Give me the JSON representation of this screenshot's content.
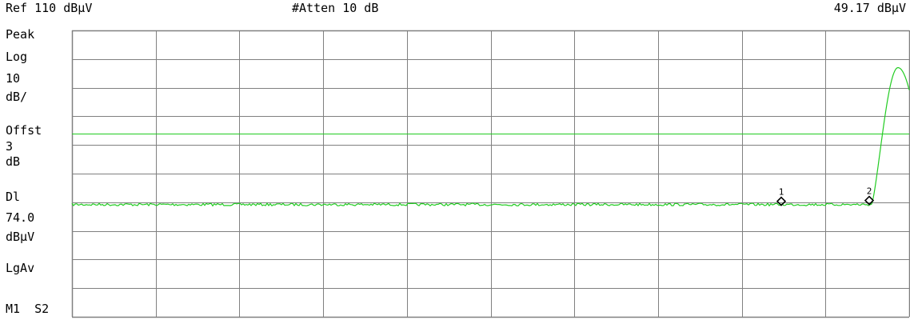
{
  "header": {
    "ref_level": "Ref 110 dBµV",
    "attenuation": "#Atten 10 dB",
    "marker_readout": "49.17 dBµV"
  },
  "sidebar": {
    "detector": "Peak",
    "scale_type": "Log",
    "scale_value": "10",
    "scale_unit": "dB/",
    "offset_label": "Offst",
    "offset_value": "3",
    "offset_unit": "dB",
    "display_line_label": "Dl",
    "display_line_value": "74.0",
    "display_line_unit": "dBµV",
    "average_mode": "LgAv",
    "trigger_mode": "M1  S2"
  },
  "markers": [
    {
      "label": "1",
      "level_dbuv": 49.2
    },
    {
      "label": "2",
      "level_dbuv": 49.5
    }
  ],
  "trace": {
    "color": "#22cc22",
    "noise_floor_dbuv": 49.2,
    "display_line_dbuv": 74.0,
    "peak_dbuv": 97
  },
  "colors": {
    "grid": "#808080",
    "trace": "#22cc22",
    "text": "#000000",
    "marker": "#000000"
  }
}
